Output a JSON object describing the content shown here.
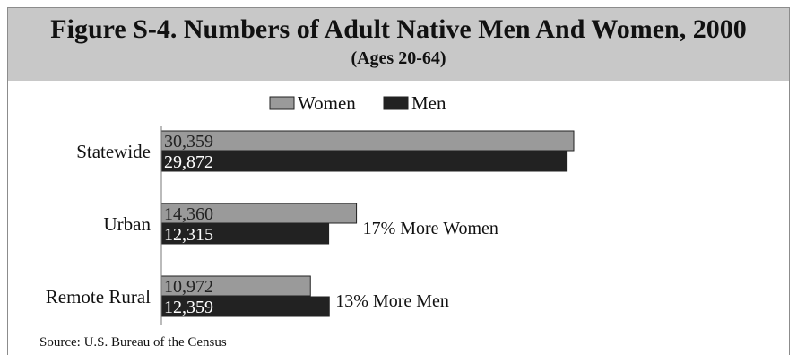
{
  "chart": {
    "title": "Figure S-4. Numbers of Adult Native Men And Women, 2000",
    "subtitle": "(Ages 20-64)",
    "source": "Source:  U.S.  Bureau of the Census"
  },
  "chart_data": {
    "type": "bar",
    "orientation": "horizontal",
    "categories": [
      "Statewide",
      "Urban",
      "Remote Rural"
    ],
    "series": [
      {
        "name": "Women",
        "color": "#9a9a9a",
        "values": [
          30359,
          14360,
          10972
        ],
        "labels": [
          "30,359",
          "14,360",
          "10,972"
        ]
      },
      {
        "name": "Men",
        "color": "#222222",
        "values": [
          29872,
          12315,
          12359
        ],
        "labels": [
          "29,872",
          "12,315",
          "12,359"
        ]
      }
    ],
    "annotations": [
      "",
      "17% More Women",
      "13% More Men"
    ],
    "legend_position": "top-center",
    "grid": false
  }
}
